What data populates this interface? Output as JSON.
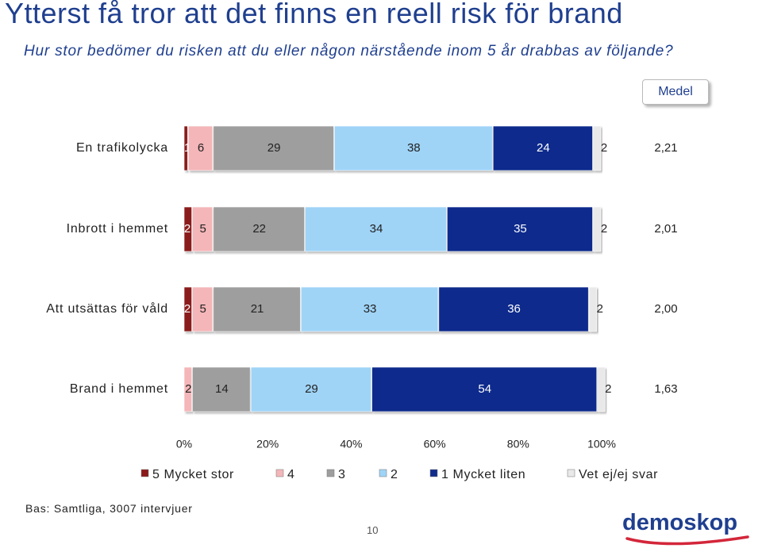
{
  "title": "Ytterst få tror att det finns en reell risk för brand",
  "subtitle": "Hur stor bedömer du risken att du eller någon närstående inom 5 år drabbas av följande?",
  "medel_label": "Medel",
  "base_text": "Bas: Samtliga, 3007 intervjuer",
  "page_number": "10",
  "logo_text": "demoskop",
  "colors": {
    "title": "#1f3f8f",
    "series": [
      "#8b1a1a",
      "#f4b6b9",
      "#9e9e9e",
      "#9fd4f7",
      "#112c8c",
      "#e9e9e9"
    ]
  },
  "chart_data": {
    "type": "bar",
    "orientation": "horizontal",
    "stacked": true,
    "categories": [
      "En trafikolycka",
      "Inbrott i hemmet",
      "Att utsättas för våld",
      "Brand i hemmet"
    ],
    "series": [
      {
        "name": "5 Mycket stor",
        "values": [
          1,
          2,
          2,
          0
        ]
      },
      {
        "name": "4",
        "values": [
          6,
          5,
          5,
          2
        ]
      },
      {
        "name": "3",
        "values": [
          29,
          22,
          21,
          14
        ]
      },
      {
        "name": "2",
        "values": [
          38,
          34,
          33,
          29
        ]
      },
      {
        "name": "1 Mycket liten",
        "values": [
          24,
          35,
          36,
          54
        ]
      },
      {
        "name": "Vet ej/ej svar",
        "values": [
          2,
          2,
          2,
          2
        ]
      }
    ],
    "data_labels": [
      [
        "1",
        "6",
        "29",
        "38",
        "24",
        "2"
      ],
      [
        "2",
        "5",
        "22",
        "34",
        "35",
        "2"
      ],
      [
        "2",
        "5",
        "21",
        "33",
        "36",
        "2"
      ],
      [
        "",
        "2",
        "14",
        "29",
        "54",
        "2"
      ]
    ],
    "averages": [
      "2,21",
      "2,01",
      "2,00",
      "1,63"
    ],
    "x_ticks": [
      "0%",
      "20%",
      "40%",
      "60%",
      "80%",
      "100%"
    ],
    "xlim": [
      0,
      100
    ],
    "legend_position": "bottom",
    "grid": false
  }
}
